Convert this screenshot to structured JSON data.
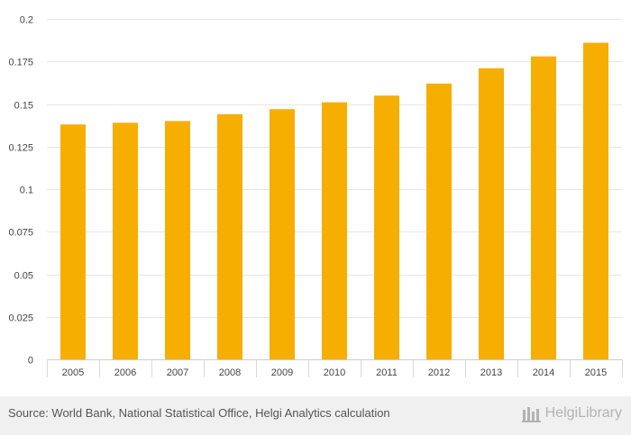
{
  "chart_data": {
    "type": "bar",
    "categories": [
      "2005",
      "2006",
      "2007",
      "2008",
      "2009",
      "2010",
      "2011",
      "2012",
      "2013",
      "2014",
      "2015"
    ],
    "values": [
      0.138,
      0.139,
      0.14,
      0.144,
      0.147,
      0.151,
      0.155,
      0.162,
      0.171,
      0.178,
      0.186
    ],
    "title": "",
    "xlabel": "",
    "ylabel": "",
    "ylim": [
      0,
      0.2
    ],
    "yticks": [
      "0",
      "0.025",
      "0.05",
      "0.075",
      "0.1",
      "0.125",
      "0.15",
      "0.175",
      "0.2"
    ],
    "ytick_values": [
      0,
      0.025,
      0.05,
      0.075,
      0.1,
      0.125,
      0.15,
      0.175,
      0.2
    ],
    "grid": true,
    "bar_color": "#f6ae00"
  },
  "footer": {
    "source": "Source: World Bank, National Statistical Office, Helgi Analytics calculation",
    "brand": "HelgiLibrary"
  }
}
